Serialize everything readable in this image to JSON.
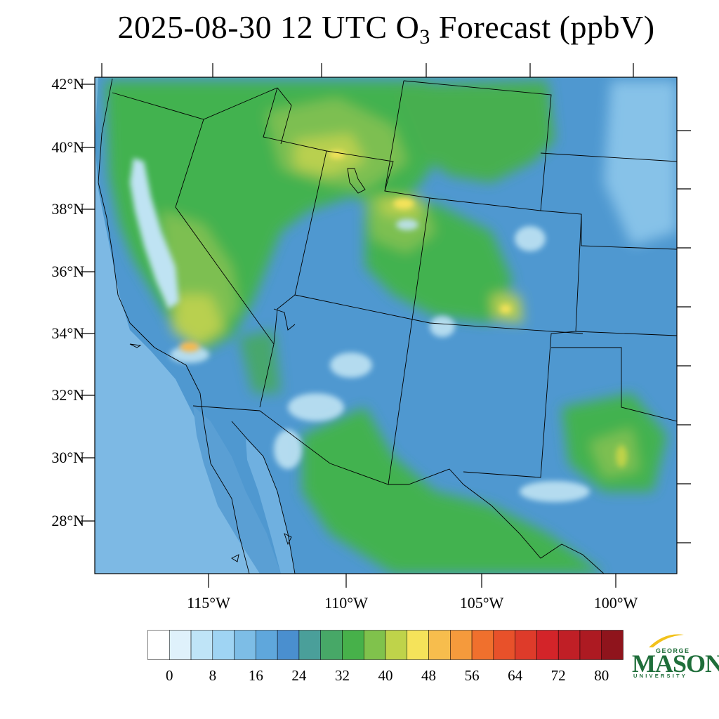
{
  "title": {
    "prefix": "2025-08-30 12 UTC O",
    "subscript": "3",
    "suffix": " Forecast (ppbV)"
  },
  "map": {
    "lat_labels": [
      "42°N",
      "40°N",
      "38°N",
      "36°N",
      "34°N",
      "32°N",
      "30°N",
      "28°N"
    ],
    "lon_labels": [
      "115°W",
      "110°W",
      "105°W",
      "100°W"
    ],
    "ocean_color": "#7db9e4",
    "land_colors": [
      "#4f98d0",
      "#43b44a",
      "#7fc24c",
      "#bfd34a",
      "#f5e35a",
      "#f7b94d",
      "#bfe3f3"
    ]
  },
  "colorbar": {
    "tick_labels": [
      "0",
      "8",
      "16",
      "24",
      "32",
      "40",
      "48",
      "56",
      "64",
      "72",
      "80"
    ],
    "colors": [
      "#ffffff",
      "#dff1fb",
      "#bfe4f7",
      "#9fd4f3",
      "#7dbde6",
      "#5fa7dc",
      "#4a8fcf",
      "#4a9f9a",
      "#47a867",
      "#47b14a",
      "#80c24c",
      "#bfd34a",
      "#f5e35a",
      "#f7bd4d",
      "#f59a3c",
      "#f0702d",
      "#e8512a",
      "#de3b2a",
      "#d32429",
      "#c01f26",
      "#ad1a22",
      "#8f141c"
    ]
  },
  "logo": {
    "line1": "GEORGE",
    "line2": "MASON",
    "line3": "UNIVERSITY",
    "color": "#1f6e3a"
  }
}
